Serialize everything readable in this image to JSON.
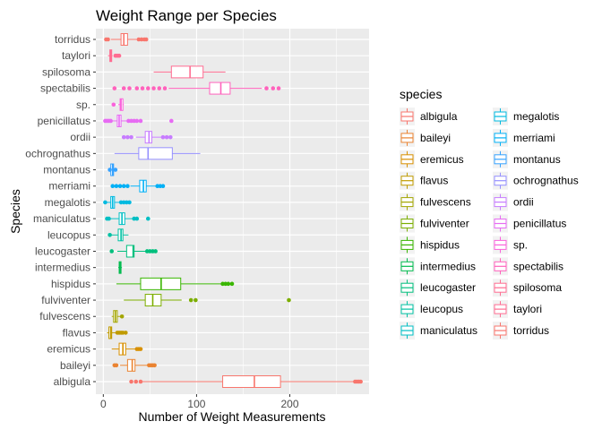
{
  "chart_data": {
    "type": "boxplot",
    "orientation": "horizontal",
    "title": "Weight Range per Species",
    "xlabel": "Number of Weight Measurements",
    "ylabel": "Species",
    "xlim": [
      -8,
      285
    ],
    "xticks": [
      0,
      100,
      200
    ],
    "grid": true,
    "legend_title": "species",
    "legend_position": "right",
    "series": [
      {
        "name": "albigula",
        "color": "#F8766D",
        "q1": 128,
        "median": 162,
        "q3": 190,
        "whisker_low": 42,
        "whisker_high": 275,
        "outliers": [
          30,
          35,
          40,
          270,
          272,
          274,
          276
        ]
      },
      {
        "name": "baileyi",
        "color": "#EA8331",
        "q1": 26,
        "median": 31,
        "q3": 34,
        "whisker_low": 18,
        "whisker_high": 47,
        "outliers": [
          12,
          14,
          49,
          51,
          53,
          55
        ]
      },
      {
        "name": "eremicus",
        "color": "#D89000",
        "q1": 17,
        "median": 21,
        "q3": 24,
        "whisker_low": 9,
        "whisker_high": 34,
        "outliers": [
          36,
          38,
          40
        ]
      },
      {
        "name": "flavus",
        "color": "#C09B00",
        "q1": 6,
        "median": 8,
        "q3": 9,
        "whisker_low": 4,
        "whisker_high": 13,
        "outliers": [
          15,
          17,
          19,
          21,
          24
        ]
      },
      {
        "name": "fulvescens",
        "color": "#A3A500",
        "q1": 11,
        "median": 13,
        "q3": 15,
        "whisker_low": 9,
        "whisker_high": 19,
        "outliers": [
          20
        ]
      },
      {
        "name": "fulviventer",
        "color": "#7CAE00",
        "q1": 45,
        "median": 53,
        "q3": 62,
        "whisker_low": 22,
        "whisker_high": 84,
        "outliers": [
          94,
          99,
          199
        ]
      },
      {
        "name": "hispidus",
        "color": "#39B600",
        "q1": 40,
        "median": 62,
        "q3": 83,
        "whisker_low": 14,
        "whisker_high": 126,
        "outliers": [
          128,
          131,
          134,
          138
        ]
      },
      {
        "name": "intermedius",
        "color": "#00BB4E",
        "q1": 17,
        "median": 18,
        "q3": 19,
        "whisker_low": 16,
        "whisker_high": 20,
        "outliers": []
      },
      {
        "name": "leucogaster",
        "color": "#00BF7D",
        "q1": 25,
        "median": 32,
        "q3": 33,
        "whisker_low": 15,
        "whisker_high": 45,
        "outliers": [
          9,
          47,
          50,
          53,
          56
        ]
      },
      {
        "name": "leucopus",
        "color": "#00C1A3",
        "q1": 16,
        "median": 19,
        "q3": 21,
        "whisker_low": 9,
        "whisker_high": 27,
        "outliers": [
          7
        ]
      },
      {
        "name": "maniculatus",
        "color": "#00BFC4",
        "q1": 17,
        "median": 20,
        "q3": 23,
        "whisker_low": 8,
        "whisker_high": 31,
        "outliers": [
          4,
          6,
          33,
          36,
          48
        ]
      },
      {
        "name": "megalotis",
        "color": "#00BAE0",
        "q1": 8,
        "median": 10,
        "q3": 12,
        "whisker_low": 4,
        "whisker_high": 17,
        "outliers": [
          2,
          19,
          22,
          25,
          28
        ]
      },
      {
        "name": "merriami",
        "color": "#00B0F6",
        "q1": 39,
        "median": 43,
        "q3": 46,
        "whisker_low": 29,
        "whisker_high": 56,
        "outliers": [
          10,
          14,
          18,
          22,
          26,
          58,
          61,
          64
        ]
      },
      {
        "name": "montanus",
        "color": "#35A2FF",
        "q1": 8,
        "median": 10,
        "q3": 11,
        "whisker_low": 7,
        "whisker_high": 12,
        "outliers": [
          7,
          13
        ]
      },
      {
        "name": "ochrognathus",
        "color": "#9590FF",
        "q1": 38,
        "median": 48,
        "q3": 74,
        "whisker_low": 12,
        "whisker_high": 104,
        "outliers": []
      },
      {
        "name": "ordii",
        "color": "#C77CFF",
        "q1": 45,
        "median": 49,
        "q3": 52,
        "whisker_low": 35,
        "whisker_high": 62,
        "outliers": [
          22,
          26,
          30,
          64,
          68,
          72
        ]
      },
      {
        "name": "penicillatus",
        "color": "#E76BF3",
        "q1": 15,
        "median": 17,
        "q3": 19,
        "whisker_low": 10,
        "whisker_high": 25,
        "outliers": [
          2,
          4,
          6,
          8,
          27,
          30,
          33,
          36,
          40,
          73
        ]
      },
      {
        "name": "sp.",
        "color": "#FA62DB",
        "q1": 18,
        "median": 19,
        "q3": 21,
        "whisker_low": 16,
        "whisker_high": 22,
        "outliers": [
          11
        ]
      },
      {
        "name": "spectabilis",
        "color": "#FF62BC",
        "q1": 114,
        "median": 126,
        "q3": 136,
        "whisker_low": 70,
        "whisker_high": 170,
        "outliers": [
          12,
          22,
          28,
          36,
          42,
          48,
          54,
          60,
          66,
          175,
          182,
          188
        ]
      },
      {
        "name": "spilosoma",
        "color": "#FF6C91",
        "q1": 73,
        "median": 93,
        "q3": 107,
        "whisker_low": 54,
        "whisker_high": 131,
        "outliers": []
      },
      {
        "name": "taylori",
        "color": "#FF6C91",
        "q1": 7,
        "median": 8,
        "q3": 9,
        "whisker_low": 5,
        "whisker_high": 10,
        "outliers": [
          13,
          15,
          17
        ]
      },
      {
        "name": "torridus",
        "color": "#F8766D",
        "q1": 19,
        "median": 22,
        "q3": 26,
        "whisker_low": 8,
        "whisker_high": 36,
        "outliers": [
          3,
          5,
          38,
          41,
          44,
          46
        ]
      }
    ]
  }
}
